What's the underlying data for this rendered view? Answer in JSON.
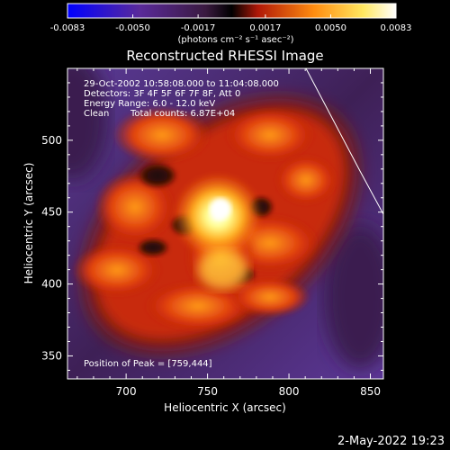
{
  "colorbar": {
    "ticks": [
      "-0.0083",
      "-0.0050",
      "-0.0017",
      "0.0017",
      "0.0050",
      "0.0083"
    ],
    "tick_values": [
      -0.0083,
      -0.005,
      -0.0017,
      0.0017,
      0.005,
      0.0083
    ],
    "range": [
      -0.0083,
      0.0083
    ],
    "unit_label": "(photons cm⁻² s⁻¹ asec⁻²)",
    "colors": [
      "#0000ff",
      "#5a2a9a",
      "#3a1a40",
      "#000000",
      "#c81e0a",
      "#ff9a10",
      "#ffff80",
      "#ffffff"
    ]
  },
  "title": "Reconstructed RHESSI Image",
  "info": {
    "line1": "29-Oct-2002 10:58:08.000 to 11:04:08.000",
    "line2": "Detectors: 3F 4F 5F 6F 7F 8F, Att 0",
    "line3": "Energy Range: 6.0 - 12.0 keV",
    "line4_left": "Clean",
    "line4_right": "Total counts: 6.87E+04"
  },
  "peak_text": "Position of Peak = [759,444]",
  "peak": {
    "x": 759,
    "y": 444
  },
  "x_axis": {
    "label": "Heliocentric X (arcsec)",
    "range": [
      664,
      858
    ],
    "ticks": [
      700,
      750,
      800,
      850
    ],
    "tick_labels": [
      "700",
      "750",
      "800",
      "850"
    ]
  },
  "y_axis": {
    "label": "Heliocentric Y (arcsec)",
    "range": [
      334,
      550
    ],
    "ticks": [
      350,
      400,
      450,
      500
    ],
    "tick_labels": [
      "350",
      "400",
      "450",
      "500"
    ]
  },
  "timestamp": "2-May-2022 19:23"
}
